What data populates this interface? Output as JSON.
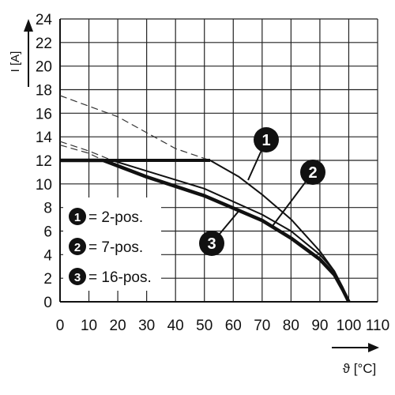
{
  "chart_data": {
    "type": "line",
    "xlabel": "ϑ [°C]",
    "ylabel": "I [A]",
    "xlim": [
      0,
      110
    ],
    "ylim": [
      0,
      24
    ],
    "x_ticks": [
      0,
      10,
      20,
      30,
      40,
      50,
      60,
      70,
      80,
      90,
      100,
      110
    ],
    "y_ticks": [
      0,
      2,
      4,
      6,
      8,
      10,
      12,
      14,
      16,
      18,
      20,
      22,
      24
    ],
    "grid": true,
    "legend_position": "bottom-left",
    "series": [
      {
        "name": "2-pos.",
        "marker": "1",
        "points": [
          [
            0,
            12
          ],
          [
            52,
            12
          ],
          [
            62,
            10.6
          ],
          [
            70,
            9.1
          ],
          [
            80,
            7.0
          ],
          [
            90,
            4.3
          ],
          [
            95,
            2.6
          ],
          [
            98,
            1.1
          ],
          [
            100,
            0
          ]
        ],
        "derating_dashed": [
          [
            0,
            17.5
          ],
          [
            20,
            15.7
          ],
          [
            40,
            13.0
          ],
          [
            52,
            12
          ]
        ]
      },
      {
        "name": "7-pos.",
        "marker": "2",
        "points": [
          [
            0,
            12
          ],
          [
            18,
            12
          ],
          [
            30,
            11.1
          ],
          [
            50,
            9.6
          ],
          [
            70,
            7.4
          ],
          [
            80,
            6.0
          ],
          [
            90,
            4.0
          ],
          [
            95,
            2.6
          ],
          [
            98,
            1.2
          ],
          [
            100,
            0
          ]
        ],
        "derating_dashed": [
          [
            0,
            13.6
          ],
          [
            10,
            12.8
          ],
          [
            18,
            12
          ]
        ]
      },
      {
        "name": "16-pos.",
        "marker": "3",
        "points": [
          [
            0,
            12
          ],
          [
            15,
            12
          ],
          [
            30,
            10.6
          ],
          [
            50,
            9.0
          ],
          [
            70,
            6.9
          ],
          [
            80,
            5.4
          ],
          [
            90,
            3.6
          ],
          [
            95,
            2.3
          ],
          [
            98,
            1.0
          ],
          [
            100,
            0
          ]
        ],
        "derating_dashed": [
          [
            0,
            13.3
          ],
          [
            10,
            12.6
          ],
          [
            15,
            12
          ]
        ]
      }
    ],
    "legend": [
      {
        "marker": "1",
        "label": "= 2-pos."
      },
      {
        "marker": "2",
        "label": "= 7-pos."
      },
      {
        "marker": "3",
        "label": "= 16-pos."
      }
    ],
    "callouts": [
      "1",
      "2",
      "3"
    ]
  }
}
